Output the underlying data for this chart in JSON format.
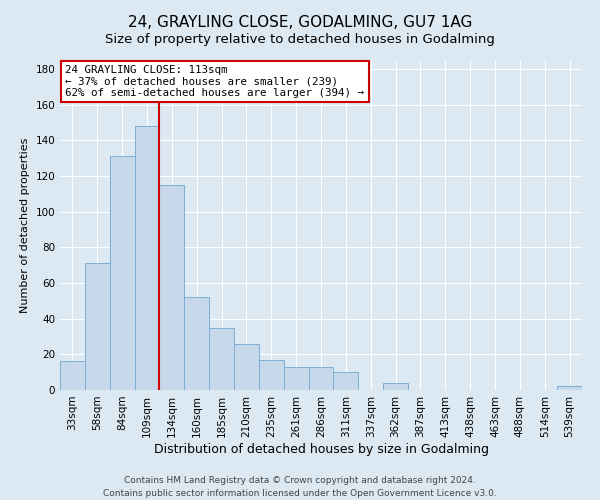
{
  "title": "24, GRAYLING CLOSE, GODALMING, GU7 1AG",
  "subtitle": "Size of property relative to detached houses in Godalming",
  "xlabel": "Distribution of detached houses by size in Godalming",
  "ylabel": "Number of detached properties",
  "bar_labels": [
    "33sqm",
    "58sqm",
    "84sqm",
    "109sqm",
    "134sqm",
    "160sqm",
    "185sqm",
    "210sqm",
    "235sqm",
    "261sqm",
    "286sqm",
    "311sqm",
    "337sqm",
    "362sqm",
    "387sqm",
    "413sqm",
    "438sqm",
    "463sqm",
    "488sqm",
    "514sqm",
    "539sqm"
  ],
  "bar_values": [
    16,
    71,
    131,
    148,
    115,
    52,
    35,
    26,
    17,
    13,
    13,
    10,
    0,
    4,
    0,
    0,
    0,
    0,
    0,
    0,
    2
  ],
  "bar_color": "#c8d8eb",
  "bar_edge_color": "#7bafd4",
  "vline_x_index": 3,
  "vline_color": "#cc0000",
  "annotation_text": "24 GRAYLING CLOSE: 113sqm\n← 37% of detached houses are smaller (239)\n62% of semi-detached houses are larger (394) →",
  "annotation_box_edge_color": "#cc0000",
  "annotation_box_facecolor": "#ffffff",
  "ylim": [
    0,
    185
  ],
  "yticks": [
    0,
    20,
    40,
    60,
    80,
    100,
    120,
    140,
    160,
    180
  ],
  "footer_line1": "Contains HM Land Registry data © Crown copyright and database right 2024.",
  "footer_line2": "Contains public sector information licensed under the Open Government Licence v3.0.",
  "background_color": "#dce8f2",
  "plot_bg_color": "#dce8f2",
  "title_fontsize": 11,
  "xlabel_fontsize": 9,
  "ylabel_fontsize": 8,
  "footer_fontsize": 6.5,
  "tick_fontsize": 7.5
}
